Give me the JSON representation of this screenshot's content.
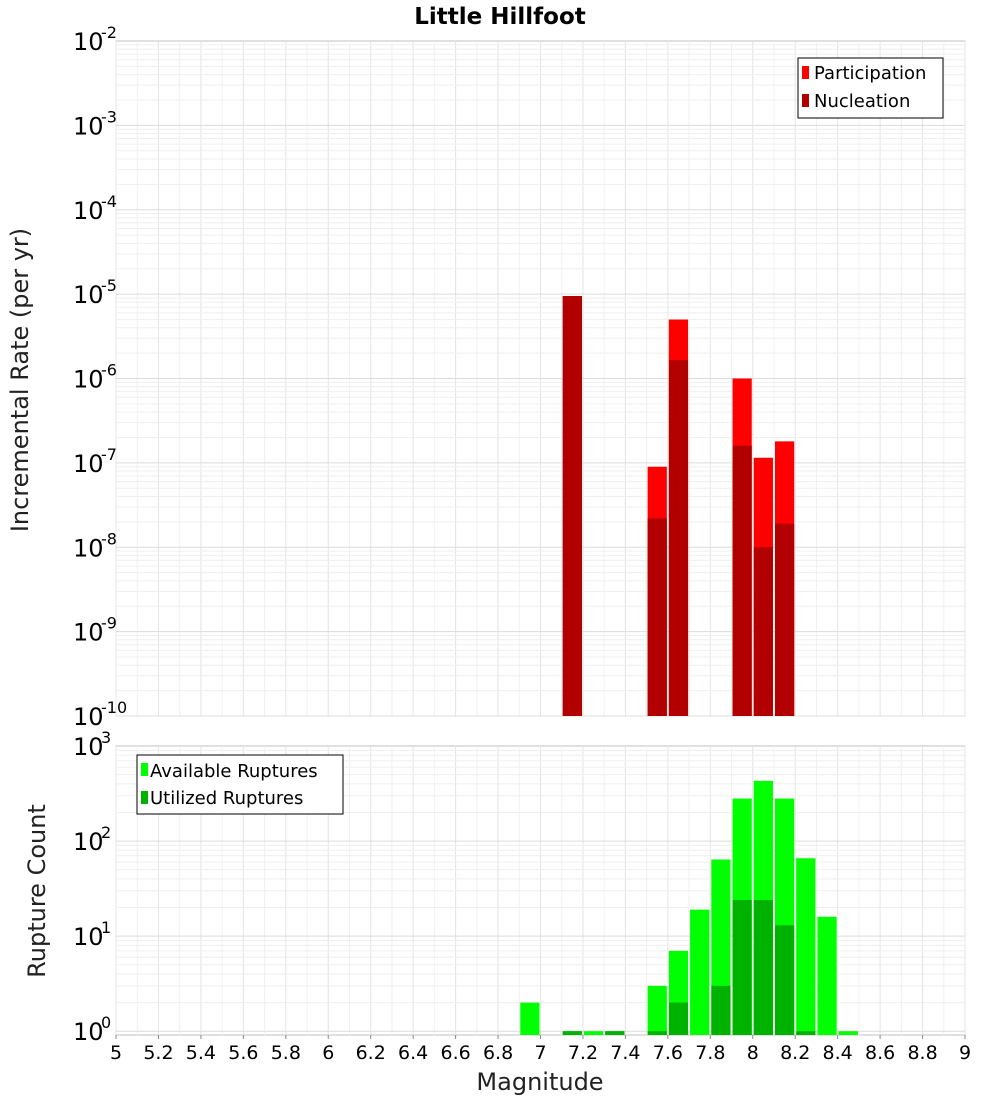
{
  "chart_data": [
    {
      "type": "bar",
      "title": "Little Hillfoot",
      "xlabel": "",
      "ylabel": "Incremental Rate (per yr)",
      "xlim": [
        5,
        9
      ],
      "bin_width": 0.1,
      "y_scale": "log",
      "ylim_exponents": [
        -10,
        -2
      ],
      "y_tick_exponents": [
        "-10",
        "-9",
        "-8",
        "-7",
        "-6",
        "-5",
        "-4",
        "-3",
        "-2"
      ],
      "y_tick_base": "10",
      "legend_position": "top-right",
      "series": [
        {
          "name": "Participation",
          "color": "#ff0000",
          "x": [
            7.15,
            7.55,
            7.65,
            7.95,
            8.05,
            8.15
          ],
          "values": [
            9.5e-06,
            9e-08,
            5e-06,
            1e-06,
            1.15e-07,
            1.8e-07
          ]
        },
        {
          "name": "Nucleation",
          "color": "#b20000",
          "x": [
            7.15,
            7.55,
            7.65,
            7.95,
            8.05,
            8.15
          ],
          "values": [
            9.5e-06,
            2.2e-08,
            1.65e-06,
            1.6e-07,
            1e-08,
            1.9e-08
          ]
        }
      ]
    },
    {
      "type": "bar",
      "title": "",
      "xlabel": "Magnitude",
      "ylabel": "Rupture Count",
      "xlim": [
        5,
        9
      ],
      "bin_width": 0.1,
      "x_ticks": [
        "5",
        "5.2",
        "5.4",
        "5.6",
        "5.8",
        "6",
        "6.2",
        "6.4",
        "6.6",
        "6.8",
        "7",
        "7.2",
        "7.4",
        "7.6",
        "7.8",
        "8",
        "8.2",
        "8.4",
        "8.6",
        "8.8",
        "9"
      ],
      "y_scale": "log",
      "ylim_exponents": [
        -0.04,
        3
      ],
      "y_tick_exponents": [
        "0",
        "1",
        "2",
        "3"
      ],
      "y_tick_base": "10",
      "legend_position": "top-left",
      "series": [
        {
          "name": "Available Ruptures",
          "color": "#00ff00",
          "x": [
            6.95,
            7.15,
            7.25,
            7.35,
            7.55,
            7.65,
            7.75,
            7.85,
            7.95,
            8.05,
            8.15,
            8.25,
            8.35,
            8.45
          ],
          "values": [
            2,
            1,
            1,
            1,
            3,
            7,
            19,
            64,
            280,
            430,
            280,
            66,
            16,
            1
          ]
        },
        {
          "name": "Utilized Ruptures",
          "color": "#00b200",
          "x": [
            7.15,
            7.35,
            7.55,
            7.65,
            7.85,
            7.95,
            8.05,
            8.15,
            8.25
          ],
          "values": [
            1,
            1,
            1,
            2,
            3,
            24,
            24,
            13,
            1
          ]
        }
      ]
    }
  ]
}
